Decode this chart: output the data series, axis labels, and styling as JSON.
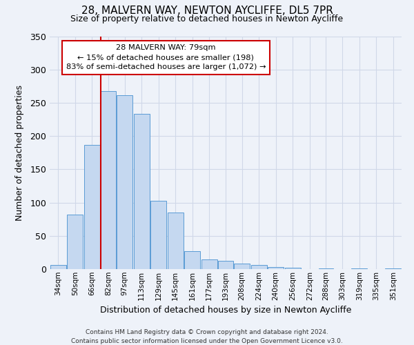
{
  "title": "28, MALVERN WAY, NEWTON AYCLIFFE, DL5 7PR",
  "subtitle": "Size of property relative to detached houses in Newton Aycliffe",
  "xlabel": "Distribution of detached houses by size in Newton Aycliffe",
  "ylabel": "Number of detached properties",
  "bar_labels": [
    "34sqm",
    "50sqm",
    "66sqm",
    "82sqm",
    "97sqm",
    "113sqm",
    "129sqm",
    "145sqm",
    "161sqm",
    "177sqm",
    "193sqm",
    "208sqm",
    "224sqm",
    "240sqm",
    "256sqm",
    "272sqm",
    "288sqm",
    "303sqm",
    "319sqm",
    "335sqm",
    "351sqm"
  ],
  "bar_values": [
    6,
    82,
    187,
    268,
    261,
    233,
    103,
    85,
    27,
    15,
    12,
    8,
    6,
    3,
    2,
    0,
    1,
    0,
    1,
    0,
    1
  ],
  "bar_color": "#c5d8f0",
  "bar_edgecolor": "#5a9bd5",
  "bin_edges": [
    34,
    50,
    66,
    82,
    97,
    113,
    129,
    145,
    161,
    177,
    193,
    208,
    224,
    240,
    256,
    272,
    288,
    303,
    319,
    335,
    351,
    367
  ],
  "annotation_title": "28 MALVERN WAY: 79sqm",
  "annotation_line1": "← 15% of detached houses are smaller (198)",
  "annotation_line2": "83% of semi-detached houses are larger (1,072) →",
  "annotation_box_color": "#ffffff",
  "annotation_box_edgecolor": "#cc0000",
  "red_line_color": "#cc0000",
  "red_line_x": 82,
  "ylim": [
    0,
    350
  ],
  "yticks": [
    0,
    50,
    100,
    150,
    200,
    250,
    300,
    350
  ],
  "grid_color": "#d0d8e8",
  "background_color": "#eef2f9",
  "footer_line1": "Contains HM Land Registry data © Crown copyright and database right 2024.",
  "footer_line2": "Contains public sector information licensed under the Open Government Licence v3.0."
}
